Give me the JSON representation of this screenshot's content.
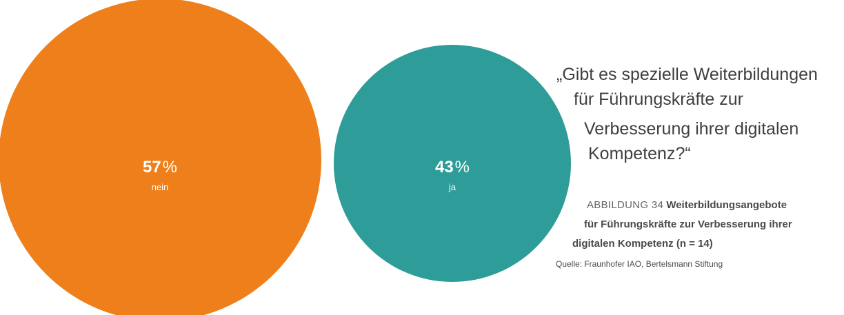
{
  "chart_data": {
    "type": "bubble",
    "series": [
      {
        "category": "nein",
        "value": 57,
        "color": "#EE7F1A"
      },
      {
        "category": "ja",
        "value": 43,
        "color": "#2E9C98"
      }
    ],
    "unit": "%"
  },
  "question": {
    "line1": "„Gibt es spezielle Weiterbildungen",
    "line2": "für Führungskräfte zur",
    "line3": "Verbesserung ihrer digitalen",
    "line4": "Kompetenz?“"
  },
  "caption": {
    "figure_label": "ABBILDUNG 34",
    "title_line1": "Weiterbildungsangebote",
    "title_line2": "für Führungskräfte zur Verbesserung ihrer",
    "title_line3": "digitalen Kompetenz (n = 14)"
  },
  "source": "Quelle: Fraunhofer IAO, Bertelsmann Stiftung"
}
